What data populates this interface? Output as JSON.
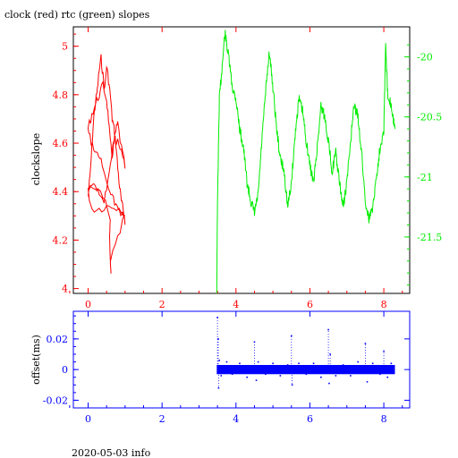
{
  "title": "clock (red) rtc (green) slopes",
  "footer": "2020-05-03 info",
  "colors": {
    "red": "#ff0000",
    "green": "#00ee00",
    "blue": "#0000ff",
    "axis": "#000000"
  },
  "chart_data": [
    {
      "type": "line",
      "ylabel": "clockslope",
      "xlim": [
        -0.4,
        8.7
      ],
      "x_ticks": [
        0,
        2,
        4,
        6,
        8
      ],
      "x_tick_labels": [
        "0",
        "2",
        "4",
        "6",
        "8"
      ],
      "left_axis": {
        "ylim": [
          3.98,
          5.08
        ],
        "ticks": [
          4,
          4.2,
          4.4,
          4.6,
          4.8,
          5
        ],
        "tick_labels": [
          "4",
          "4.2",
          "4.4",
          "4.6",
          "4.8",
          "5"
        ]
      },
      "right_axis": {
        "ylim": [
          -21.97,
          -19.75
        ],
        "ticks": [
          -20,
          -20.5,
          -21,
          -21.5
        ],
        "tick_labels": [
          "-20",
          "-20.5",
          "-21",
          "-21.5"
        ]
      },
      "series": [
        {
          "color": "red",
          "axis": "left",
          "x": [
            0.0,
            0.05,
            0.1,
            0.15,
            0.2,
            0.25,
            0.3,
            0.35,
            0.4,
            0.45,
            0.5,
            0.55,
            0.6,
            0.65,
            0.7,
            0.75,
            0.8,
            0.85,
            0.9,
            0.95,
            1.0,
            0.95,
            0.85,
            0.75,
            0.65,
            0.55,
            0.45,
            0.35,
            0.25,
            0.15,
            0.05,
            0.0,
            0.1,
            0.2,
            0.3,
            0.4,
            0.5,
            0.55,
            0.6,
            0.65,
            0.7,
            0.75,
            0.8,
            0.9,
            1.0,
            0.9,
            0.8,
            0.7,
            0.6,
            0.5,
            0.4,
            0.3,
            0.2,
            0.1,
            0.0,
            0.1,
            0.3,
            0.5,
            0.7,
            0.9,
            1.0,
            0.8,
            0.6,
            0.62,
            0.58,
            0.6,
            0.4,
            0.2,
            0.0
          ],
          "y": [
            4.38,
            4.46,
            4.58,
            4.7,
            4.77,
            4.82,
            4.9,
            4.95,
            4.88,
            4.82,
            4.92,
            4.86,
            4.8,
            4.7,
            4.66,
            4.6,
            4.5,
            4.42,
            4.36,
            4.32,
            4.28,
            4.3,
            4.32,
            4.34,
            4.38,
            4.43,
            4.48,
            4.52,
            4.55,
            4.58,
            4.62,
            4.66,
            4.72,
            4.76,
            4.8,
            4.84,
            4.78,
            4.7,
            4.6,
            4.55,
            4.6,
            4.65,
            4.68,
            4.58,
            4.5,
            4.56,
            4.6,
            4.62,
            4.52,
            4.4,
            4.35,
            4.38,
            4.42,
            4.44,
            4.4,
            4.33,
            4.33,
            4.34,
            4.34,
            4.33,
            4.3,
            4.22,
            4.12,
            4.06,
            4.2,
            4.3,
            4.38,
            4.41,
            4.4
          ]
        },
        {
          "color": "green",
          "axis": "right",
          "x": [
            3.48,
            3.5,
            3.55,
            3.62,
            3.7,
            3.8,
            3.9,
            4.0,
            4.1,
            4.2,
            4.3,
            4.4,
            4.5,
            4.6,
            4.7,
            4.8,
            4.9,
            5.0,
            5.1,
            5.2,
            5.3,
            5.4,
            5.5,
            5.6,
            5.7,
            5.8,
            5.9,
            6.0,
            6.1,
            6.2,
            6.3,
            6.4,
            6.5,
            6.6,
            6.7,
            6.8,
            6.9,
            7.0,
            7.1,
            7.2,
            7.3,
            7.4,
            7.5,
            7.6,
            7.7,
            7.8,
            7.9,
            8.0,
            8.05,
            8.1,
            8.2,
            8.3
          ],
          "y": [
            -21.95,
            -21.2,
            -20.35,
            -20.1,
            -19.8,
            -20.0,
            -20.25,
            -20.35,
            -20.6,
            -20.75,
            -21.05,
            -21.2,
            -21.3,
            -21.15,
            -20.7,
            -20.3,
            -19.95,
            -20.25,
            -20.6,
            -20.85,
            -20.95,
            -21.25,
            -21.05,
            -20.65,
            -20.35,
            -20.45,
            -20.7,
            -20.9,
            -21.05,
            -20.75,
            -20.4,
            -20.5,
            -20.7,
            -20.95,
            -20.8,
            -21.05,
            -21.25,
            -21.05,
            -20.7,
            -20.4,
            -20.5,
            -20.8,
            -21.2,
            -21.35,
            -21.25,
            -21.0,
            -20.75,
            -20.6,
            -19.9,
            -20.3,
            -20.4,
            -20.6
          ]
        }
      ]
    },
    {
      "type": "scatter",
      "ylabel": "offset(ms)",
      "xlim": [
        -0.4,
        8.7
      ],
      "ylim": [
        -0.025,
        0.038
      ],
      "x_ticks": [
        0,
        2,
        4,
        6,
        8
      ],
      "x_tick_labels": [
        "0",
        "2",
        "4",
        "6",
        "8"
      ],
      "y_ticks": [
        -0.02,
        0,
        0.02
      ],
      "y_tick_labels": [
        "-0.02",
        "0",
        "0.02"
      ],
      "series": [
        {
          "color": "blue",
          "band": {
            "x": [
              3.48,
              8.3
            ],
            "y": [
              -0.003,
              0.003
            ]
          },
          "x": [
            3.5,
            3.52,
            3.53,
            3.55,
            3.6,
            3.75,
            3.9,
            4.1,
            4.3,
            4.5,
            4.55,
            4.6,
            4.8,
            5.0,
            5.2,
            5.4,
            5.5,
            5.52,
            5.7,
            5.9,
            6.1,
            6.3,
            6.5,
            6.52,
            6.55,
            6.7,
            6.9,
            7.1,
            7.3,
            7.5,
            7.55,
            7.7,
            7.9,
            8.0,
            8.1,
            8.2,
            8.28
          ],
          "y": [
            0.034,
            0.02,
            -0.012,
            0.006,
            -0.004,
            0.005,
            -0.003,
            0.004,
            -0.005,
            0.018,
            -0.007,
            0.005,
            -0.003,
            0.004,
            -0.004,
            0.003,
            0.022,
            -0.01,
            0.004,
            -0.003,
            0.004,
            -0.005,
            0.026,
            -0.009,
            0.01,
            -0.004,
            0.003,
            -0.004,
            0.005,
            0.017,
            -0.008,
            0.004,
            -0.003,
            0.012,
            -0.005,
            0.004,
            -0.002
          ]
        }
      ]
    }
  ]
}
